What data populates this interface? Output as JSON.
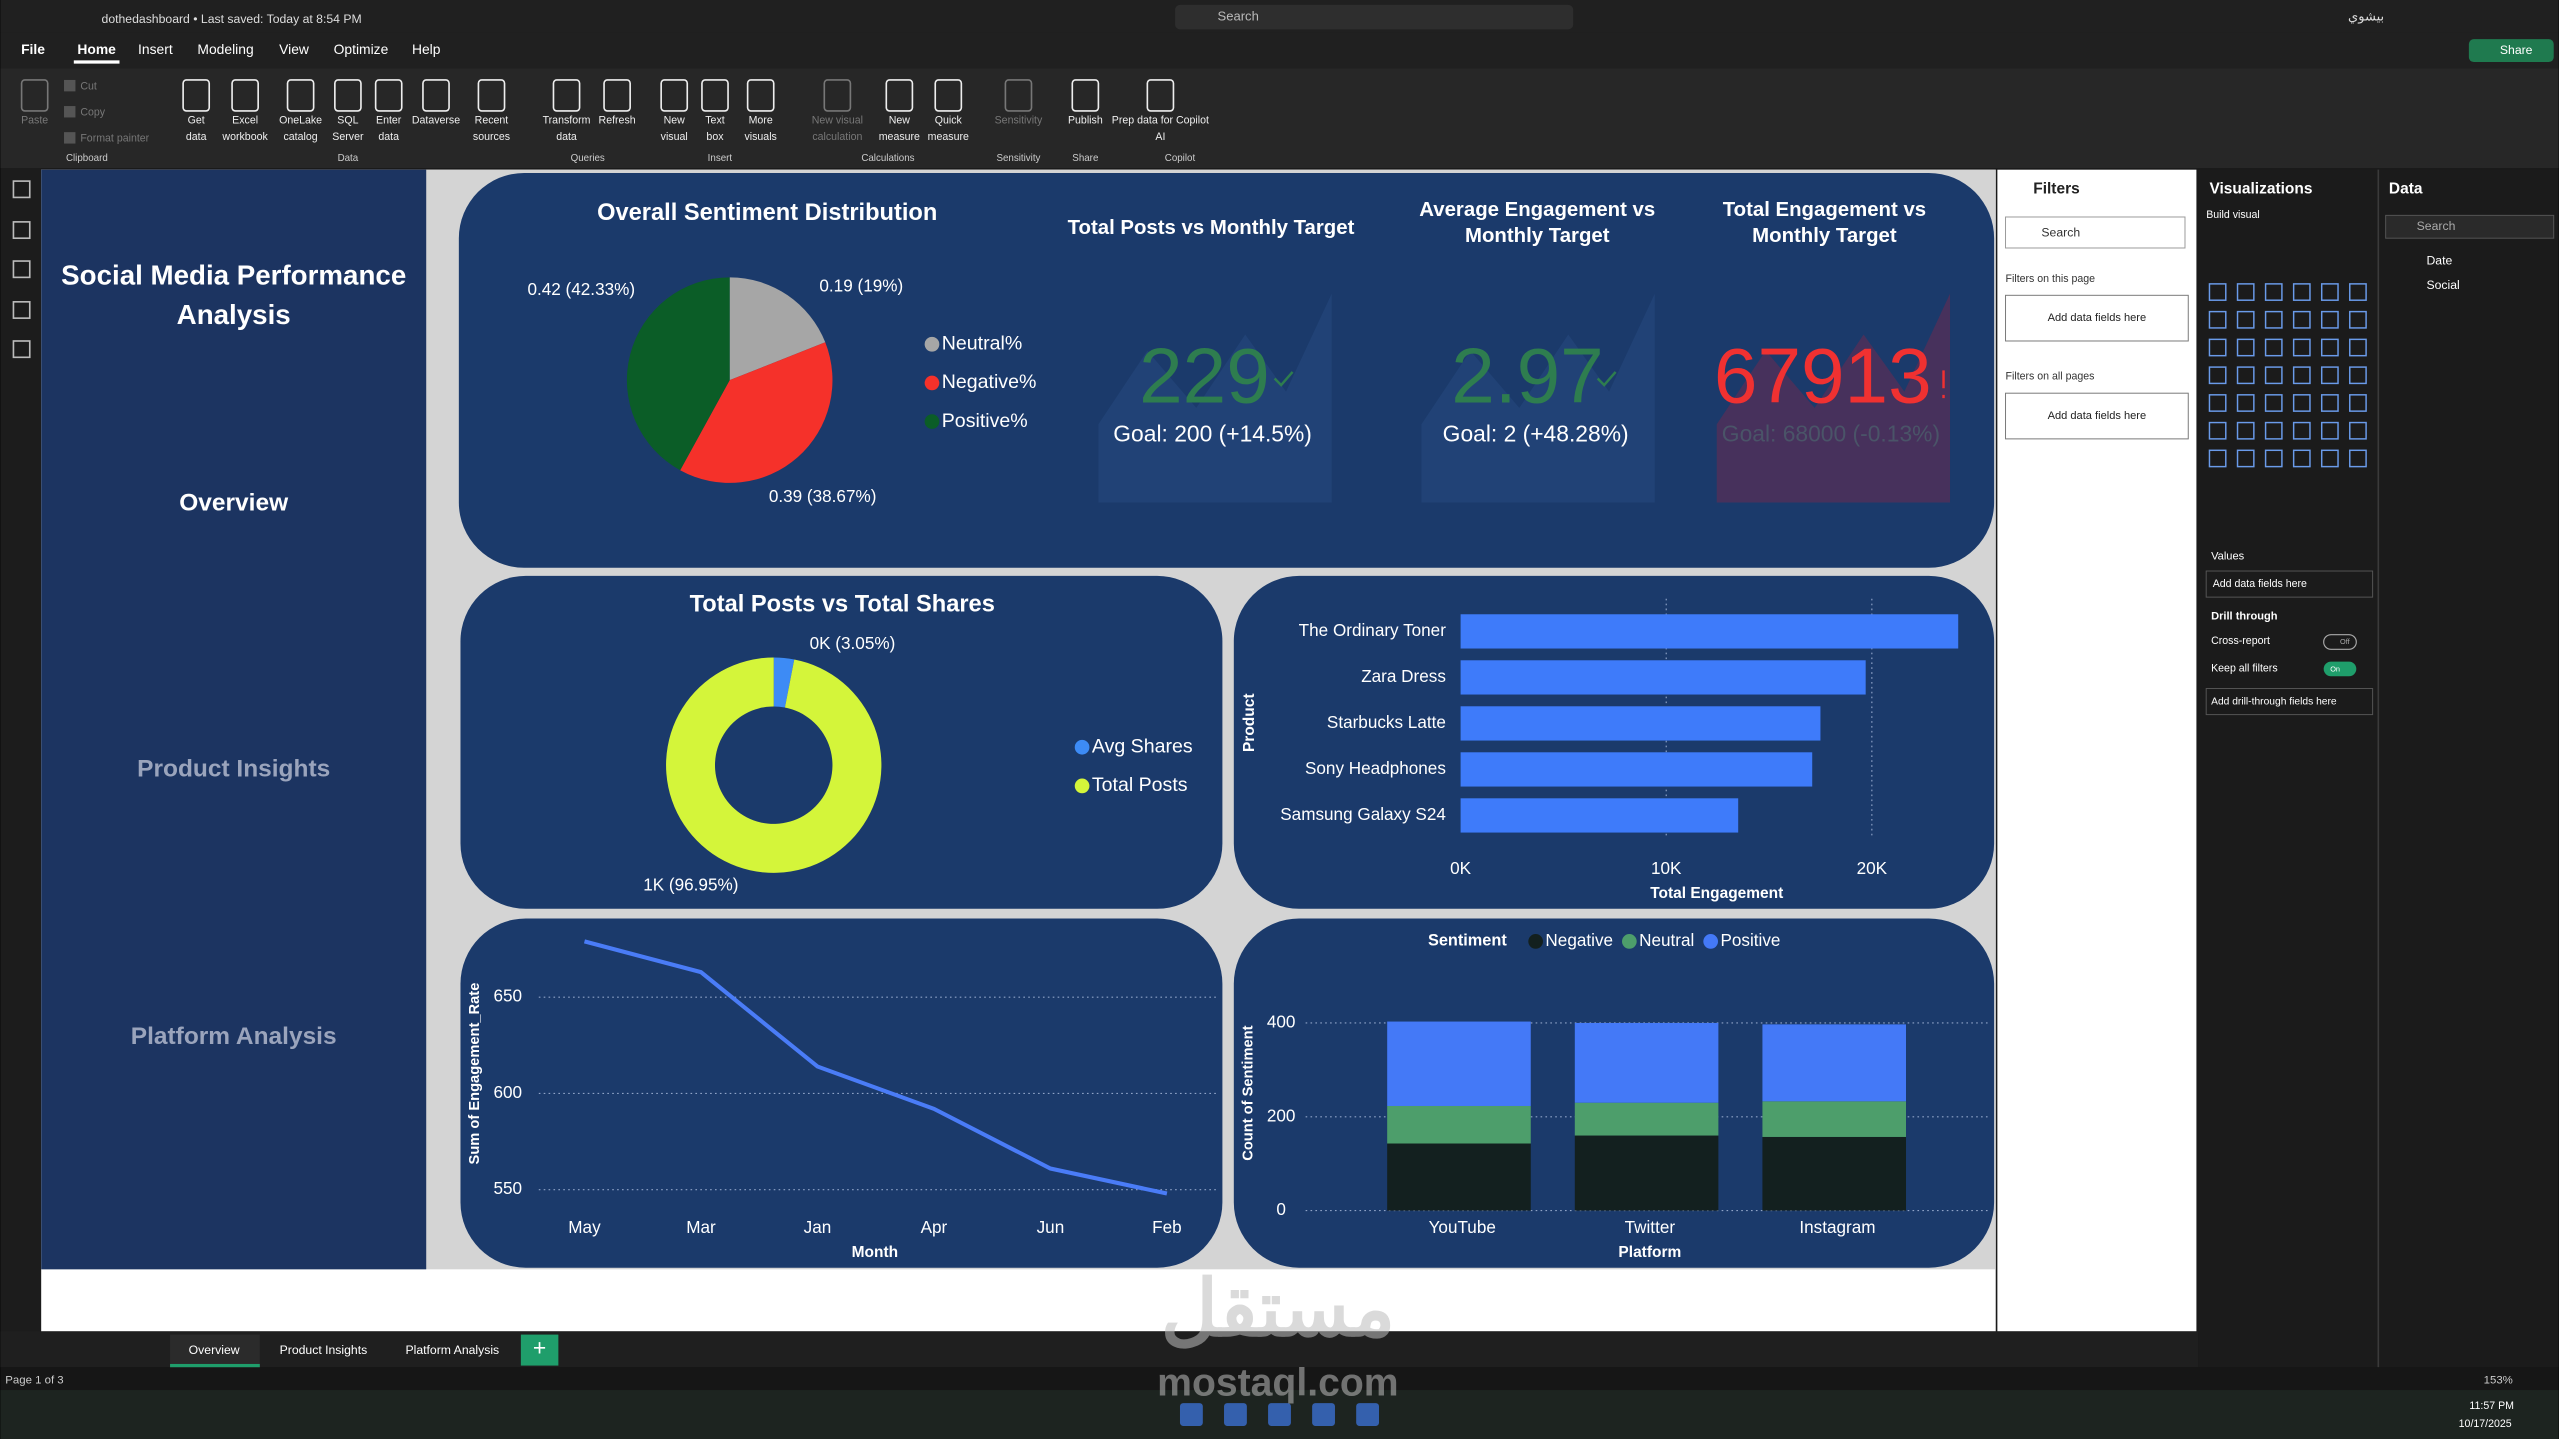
{
  "titlebar": {
    "document": "dothedashboard • Last saved: Today at 8:54 PM",
    "search": "Search",
    "user": "بيشوي"
  },
  "menu": [
    "File",
    "Home",
    "Insert",
    "Modeling",
    "View",
    "Optimize",
    "Help"
  ],
  "share": "Share",
  "ribbon": {
    "groups": [
      {
        "label": "Clipboard",
        "items": [
          [
            "Paste"
          ],
          [
            "Cut"
          ],
          [
            "Copy"
          ],
          [
            "Format painter"
          ]
        ]
      },
      {
        "label": "Data",
        "items": [
          [
            "Get",
            "data"
          ],
          [
            "Excel",
            "workbook"
          ],
          [
            "OneLake",
            "catalog"
          ],
          [
            "SQL",
            "Server"
          ],
          [
            "Enter",
            "data"
          ],
          [
            "Dataverse"
          ],
          [
            "Recent",
            "sources"
          ]
        ]
      },
      {
        "label": "Queries",
        "items": [
          [
            "Transform",
            "data"
          ],
          [
            "Refresh"
          ]
        ]
      },
      {
        "label": "Insert",
        "items": [
          [
            "New",
            "visual"
          ],
          [
            "Text",
            "box"
          ],
          [
            "More",
            "visuals"
          ]
        ]
      },
      {
        "label": "Calculations",
        "items": [
          [
            "New visual",
            "calculation"
          ],
          [
            "New",
            "measure"
          ],
          [
            "Quick",
            "measure"
          ]
        ]
      },
      {
        "label": "Sensitivity",
        "items": [
          [
            "Sensitivity"
          ]
        ]
      },
      {
        "label": "Share",
        "items": [
          [
            "Publish"
          ]
        ]
      },
      {
        "label": "Copilot",
        "items": [
          [
            "Prep data for Copilot",
            "AI"
          ]
        ]
      }
    ]
  },
  "report": {
    "nav": {
      "title_lines": [
        "Social Media Performance",
        "Analysis"
      ],
      "items": [
        "Overview",
        "Product Insights",
        "Platform Analysis"
      ]
    },
    "kpis": [
      {
        "title_lines": [
          "Total Posts vs Monthly Target"
        ],
        "value": 229,
        "goal_label": "Goal: 200 (+14.5%)",
        "color": "#2e7d4f"
      },
      {
        "title_lines": [
          "Average Engagement vs",
          "Monthly Target"
        ],
        "value": 2.97,
        "goal_label": "Goal: 2 (+48.28%)",
        "color": "#2e7d4f"
      },
      {
        "title_lines": [
          "Total Engagement vs",
          "Monthly Target"
        ],
        "value": 67913,
        "goal_label": "Goal: 68000 (-0.13%)",
        "color": "#f03131"
      }
    ],
    "charts": [
      {
        "type": "pie",
        "title": "Overall Sentiment Distribution",
        "categories": [
          "Neutral%",
          "Negative%",
          "Positive%"
        ],
        "values": [
          0.19,
          0.39,
          0.42
        ],
        "value_labels": [
          "0.19 (19%)",
          "0.39 (38.67%)",
          "0.42 (42.33%)"
        ],
        "colors": [
          "#a6a6a6",
          "#f5312a",
          "#0b5d27"
        ]
      },
      {
        "type": "donut",
        "title": "Total Posts vs Total Shares",
        "categories": [
          "Avg Shares",
          "Total Posts"
        ],
        "values": [
          31.5,
          1000
        ],
        "value_labels": [
          "0K (3.05%)",
          "1K (96.95%)"
        ],
        "colors": [
          "#3d8bf5",
          "#d4f53a"
        ]
      },
      {
        "type": "hbar",
        "categories": [
          "The Ordinary Toner",
          "Zara Dress",
          "Starbucks Latte",
          "Sony Headphones",
          "Samsung Galaxy S24"
        ],
        "values": [
          24200,
          19700,
          17500,
          17100,
          13500
        ],
        "color": "#3e7bfa",
        "xlim": [
          0,
          24200
        ],
        "xticks": [
          {
            "value": 0,
            "label": "0K"
          },
          {
            "value": 10000,
            "label": "10K"
          },
          {
            "value": 20000,
            "label": "20K"
          }
        ],
        "xlabel": "Total Engagement",
        "ylabel": "Product",
        "grid": true
      },
      {
        "type": "line",
        "categories": [
          "May",
          "Mar",
          "Jan",
          "Apr",
          "Jun",
          "Feb"
        ],
        "values": [
          679,
          663,
          614,
          592,
          561,
          548
        ],
        "color": "#4a7cf7",
        "ylim": [
          540,
          690
        ],
        "yticks": [
          550,
          600,
          650
        ],
        "xlabel": "Month",
        "ylabel": "Sum of Engagement_Rate",
        "grid": true
      },
      {
        "type": "stacked",
        "legend_title": "Sentiment",
        "categories": [
          "YouTube",
          "Twitter",
          "Instagram"
        ],
        "series": [
          {
            "name": "Negative",
            "color": "#13201f",
            "values": [
              143,
              160,
              157
            ]
          },
          {
            "name": "Neutral",
            "color": "#4d9e6b",
            "values": [
              80,
              70,
              76
            ]
          },
          {
            "name": "Positive",
            "color": "#4479f7",
            "values": [
              180,
              170,
              164
            ]
          }
        ],
        "ylim": [
          0,
          480
        ],
        "yticks": [
          0,
          200,
          400
        ],
        "xlabel": "Platform",
        "ylabel": "Count of Sentiment",
        "grid": true
      }
    ]
  },
  "filters": {
    "title": "Filters",
    "search": "Search",
    "on_page": "Filters on this page",
    "on_page_add": "Add data fields here",
    "all_pages": "Filters on all pages",
    "all_pages_add": "Add data fields here"
  },
  "visualizations": {
    "title": "Visualizations",
    "build": "Build visual",
    "values": "Values",
    "values_add": "Add data fields here",
    "drill": "Drill through",
    "cross_report": "Cross-report",
    "cross_state": "Off",
    "keep_filters": "Keep all filters",
    "keep_state": "On",
    "drill_add": "Add drill-through fields here"
  },
  "data_pane": {
    "title": "Data",
    "search": "Search",
    "tables": [
      "Date",
      "Social"
    ]
  },
  "pages": [
    "Overview",
    "Product Insights",
    "Platform Analysis"
  ],
  "status": {
    "page": "Page 1 of 3",
    "zoom": "153%"
  },
  "watermark": {
    "arabic": "مستقل",
    "latin": "mostaql.com"
  },
  "taskbar": {
    "time": "11:57 PM",
    "date": "10/17/2025"
  }
}
